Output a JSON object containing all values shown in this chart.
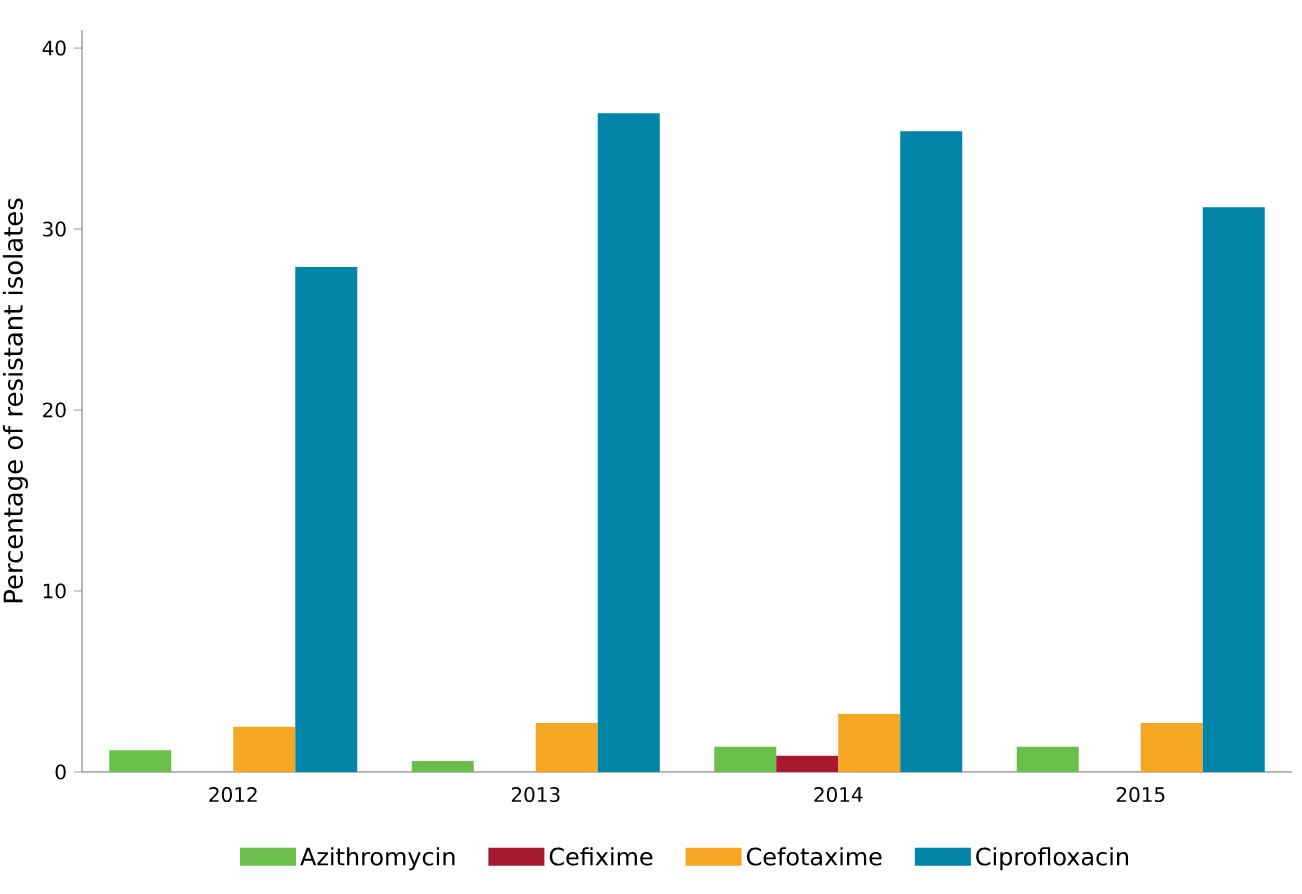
{
  "chart_data": {
    "type": "bar",
    "ylabel": "Percentage of resistant isolates",
    "categories": [
      "2012",
      "2013",
      "2014",
      "2015"
    ],
    "series": [
      {
        "name": "Azithromycin",
        "color": "#6abf4b",
        "values": [
          1.2,
          0.6,
          1.4,
          1.4
        ]
      },
      {
        "name": "Cefixime",
        "color": "#a6192e",
        "values": [
          0,
          0,
          0.9,
          0
        ]
      },
      {
        "name": "Cefotaxime",
        "color": "#f5a623",
        "values": [
          2.5,
          2.7,
          3.2,
          2.7
        ]
      },
      {
        "name": "Ciprofloxacin",
        "color": "#0084a8",
        "values": [
          27.9,
          36.4,
          35.4,
          31.2
        ]
      }
    ],
    "ylim": [
      0,
      41
    ],
    "yticks": [
      0,
      10,
      20,
      30,
      40
    ],
    "grid": false,
    "legend": "bottom"
  }
}
